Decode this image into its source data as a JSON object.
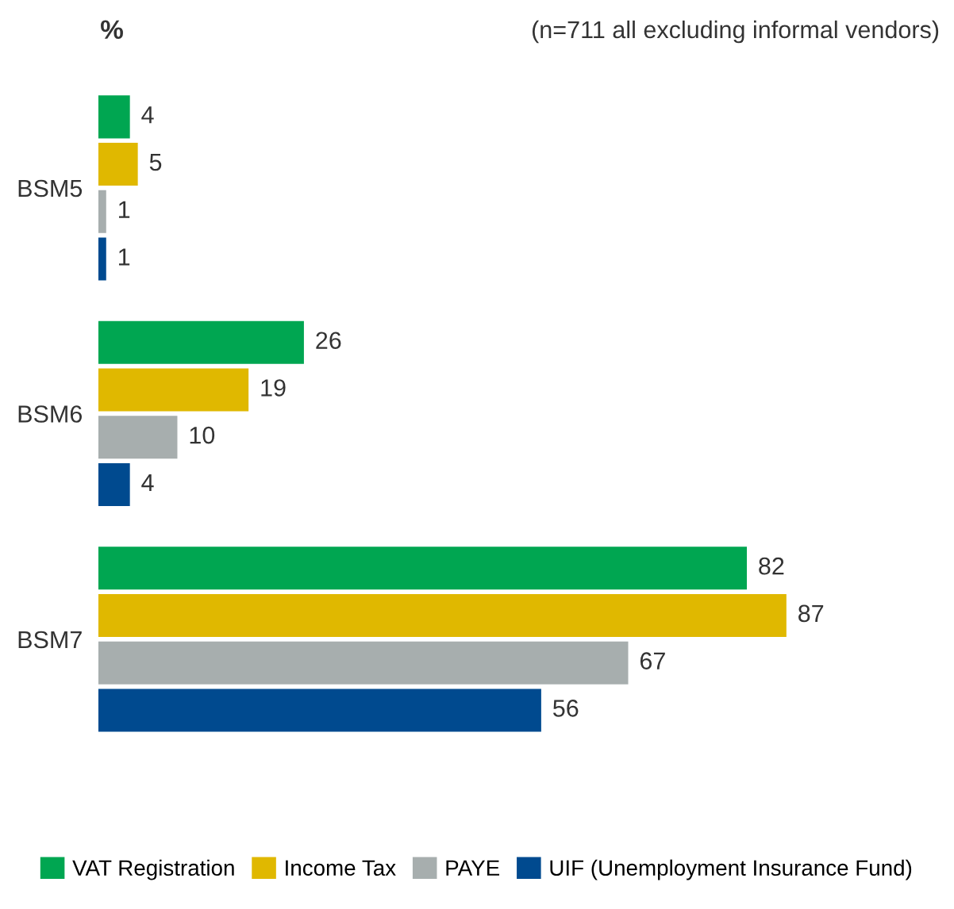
{
  "chart_data": {
    "type": "bar",
    "orientation": "horizontal",
    "title": "%",
    "annotations": [
      "(n=711 all excluding informal vendors)"
    ],
    "categories": [
      "BSM5",
      "BSM6",
      "BSM7"
    ],
    "series": [
      {
        "name": "VAT Registration",
        "color": "#00a651",
        "values": [
          4,
          26,
          82
        ]
      },
      {
        "name": "Income Tax",
        "color": "#e0b800",
        "values": [
          5,
          19,
          87
        ]
      },
      {
        "name": "PAYE",
        "color": "#a7aeae",
        "values": [
          1,
          10,
          67
        ]
      },
      {
        "name": "UIF (Unemployment Insurance Fund)",
        "color": "#004a8f",
        "values": [
          1,
          4,
          56
        ]
      }
    ],
    "data_labels": true,
    "legend": "bottom",
    "grid": false,
    "tick_labels": "y"
  }
}
